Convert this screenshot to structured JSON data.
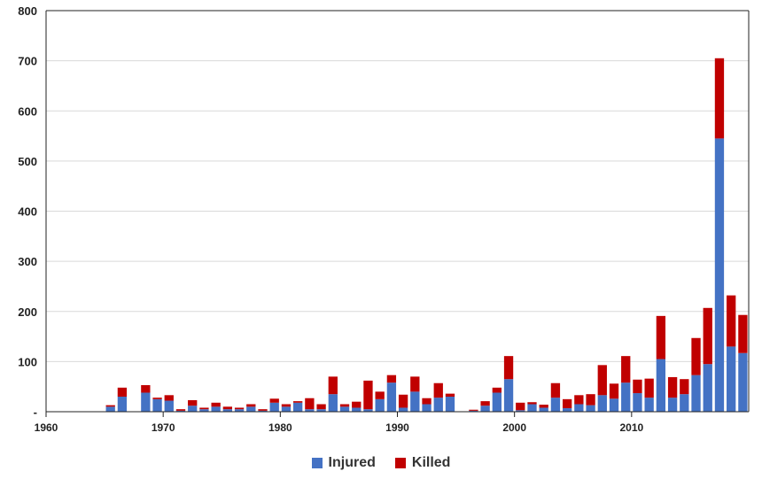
{
  "chart_data": {
    "type": "bar",
    "stacked": true,
    "x_ticks": [
      1960,
      1970,
      1980,
      1990,
      2000,
      2010
    ],
    "y_ticks": [
      0,
      100,
      200,
      300,
      400,
      500,
      600,
      700,
      800
    ],
    "y_tick_labels": [
      "-",
      "100",
      "200",
      "300",
      "400",
      "500",
      "600",
      "700",
      "800"
    ],
    "xlim": [
      1960,
      2020
    ],
    "ylim": [
      0,
      800
    ],
    "grid": "horizontal",
    "legend_position": "bottom",
    "years": [
      1960,
      1961,
      1962,
      1963,
      1964,
      1965,
      1966,
      1967,
      1968,
      1969,
      1970,
      1971,
      1972,
      1973,
      1974,
      1975,
      1976,
      1977,
      1978,
      1979,
      1980,
      1981,
      1982,
      1983,
      1984,
      1985,
      1986,
      1987,
      1988,
      1989,
      1990,
      1991,
      1992,
      1993,
      1994,
      1995,
      1996,
      1997,
      1998,
      1999,
      2000,
      2001,
      2002,
      2003,
      2004,
      2005,
      2006,
      2007,
      2008,
      2009,
      2010,
      2011,
      2012,
      2013,
      2014,
      2015,
      2016,
      2017,
      2018,
      2019
    ],
    "series": [
      {
        "name": "Injured",
        "color": "#4472C4",
        "values": [
          0,
          0,
          0,
          0,
          0,
          10,
          30,
          0,
          38,
          25,
          22,
          2,
          12,
          5,
          10,
          5,
          5,
          10,
          2,
          18,
          10,
          18,
          5,
          5,
          35,
          10,
          8,
          5,
          25,
          58,
          8,
          40,
          15,
          28,
          30,
          0,
          2,
          12,
          38,
          65,
          3,
          15,
          8,
          28,
          7,
          15,
          13,
          33,
          26,
          58,
          37,
          28,
          105,
          28,
          35,
          73,
          95,
          545,
          130,
          117
        ]
      },
      {
        "name": "Killed",
        "color": "#C00000",
        "values": [
          0,
          0,
          0,
          0,
          0,
          3,
          18,
          0,
          15,
          3,
          11,
          3,
          11,
          3,
          8,
          5,
          3,
          5,
          3,
          8,
          5,
          3,
          22,
          10,
          35,
          5,
          12,
          57,
          15,
          15,
          26,
          30,
          12,
          29,
          6,
          0,
          2,
          9,
          10,
          46,
          15,
          4,
          6,
          29,
          18,
          18,
          22,
          60,
          30,
          53,
          27,
          38,
          86,
          41,
          30,
          74,
          112,
          160,
          102,
          76
        ]
      }
    ]
  }
}
